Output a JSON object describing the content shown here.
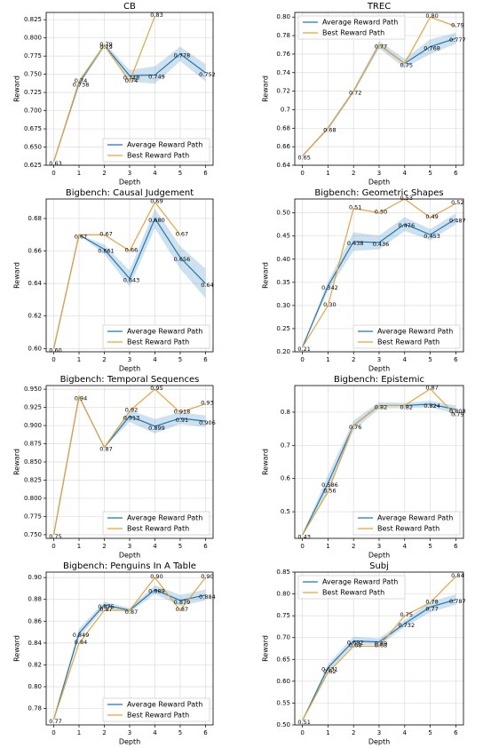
{
  "chart_data": [
    {
      "type": "line",
      "title": "CB",
      "x_label": "Depth",
      "y_label": "Reward",
      "x": [
        0,
        1,
        2,
        3,
        4,
        5,
        6
      ],
      "xlim": [
        -0.3,
        6.3
      ],
      "xticks": [
        0,
        1,
        2,
        3,
        4,
        5,
        6
      ],
      "ylim": [
        0.625,
        0.835
      ],
      "yticks": [
        0.625,
        {
          "value": 0.65,
          "label": "0.650"
        },
        0.675,
        {
          "value": 0.7,
          "label": "0.700"
        },
        0.725,
        {
          "value": 0.75,
          "label": "0.750"
        },
        0.775,
        {
          "value": 0.8,
          "label": "0.800"
        },
        0.825
      ],
      "grid": true,
      "legend": "lower right",
      "series": [
        {
          "name": "Average Reward Path",
          "color": "#1f77b4",
          "values": [
            0.63,
            0.738,
            0.79,
            0.748,
            0.749,
            0.778,
            0.752
          ],
          "spread": [
            0,
            0.004,
            0.003,
            0.008,
            0.012,
            0.01,
            0.012
          ]
        },
        {
          "name": "Best Reward Path",
          "color": "#e8a33a",
          "values": [
            0.63,
            0.74,
            0.79,
            0.74,
            0.83,
            null,
            null
          ],
          "value_labels": [
            null,
            "0.74",
            "0.79",
            "0.74",
            "0.83",
            null,
            null
          ]
        }
      ]
    },
    {
      "type": "line",
      "title": "TREC",
      "x_label": "Depth",
      "y_label": "Reward",
      "x": [
        0,
        1,
        2,
        3,
        4,
        5,
        6
      ],
      "xlim": [
        -0.3,
        6.3
      ],
      "xticks": [
        0,
        1,
        2,
        3,
        4,
        5,
        6
      ],
      "ylim": [
        0.64,
        0.805
      ],
      "yticks": [
        0.64,
        0.66,
        0.68,
        0.7,
        0.72,
        0.74,
        0.76,
        0.78,
        {
          "value": 0.8,
          "label": "0.80"
        }
      ],
      "grid": true,
      "legend": "upper left",
      "series": [
        {
          "name": "Average Reward Path",
          "color": "#1f77b4",
          "values": [
            0.65,
            0.68,
            0.72,
            0.77,
            0.75,
            0.768,
            0.777
          ],
          "spread": [
            0,
            0.002,
            0.002,
            0.004,
            0.005,
            0.008,
            0.006
          ]
        },
        {
          "name": "Best Reward Path",
          "color": "#e8a33a",
          "values": [
            0.65,
            0.68,
            0.72,
            0.77,
            0.75,
            0.8,
            0.79
          ],
          "value_labels": [
            null,
            null,
            null,
            null,
            null,
            "0.80",
            "0.79"
          ]
        }
      ]
    },
    {
      "type": "line",
      "title": "Bigbench: Causal Judgement",
      "x_label": "Depth",
      "y_label": "Reward",
      "x": [
        0,
        1,
        2,
        3,
        4,
        5,
        6
      ],
      "xlim": [
        -0.3,
        6.3
      ],
      "xticks": [
        0,
        1,
        2,
        3,
        4,
        5,
        6
      ],
      "ylim": [
        0.598,
        0.692
      ],
      "yticks": [
        {
          "value": 0.6,
          "label": "0.60"
        },
        0.62,
        0.64,
        0.66,
        0.68
      ],
      "grid": true,
      "legend": "lower right",
      "series": [
        {
          "name": "Average Reward Path",
          "color": "#1f77b4",
          "values": [
            0.6,
            0.67,
            0.661,
            0.643,
            0.68,
            0.656,
            0.64
          ],
          "value_labels": [
            "0.60",
            "0.67",
            "0.661",
            "0.643",
            "0.680",
            "0.656",
            "0.64"
          ],
          "spread": [
            0,
            0,
            0.003,
            0.005,
            0.006,
            0.007,
            0.009
          ]
        },
        {
          "name": "Best Reward Path",
          "color": "#e8a33a",
          "values": [
            0.6,
            0.67,
            0.67,
            0.66,
            0.69,
            0.67,
            null
          ],
          "value_labels": [
            null,
            null,
            "0.67",
            "0.66",
            "0.69",
            "0.67",
            null
          ]
        }
      ]
    },
    {
      "type": "line",
      "title": "Bigbench: Geometric Shapes",
      "x_label": "Depth",
      "y_label": "Reward",
      "x": [
        0,
        1,
        2,
        3,
        4,
        5,
        6
      ],
      "xlim": [
        -0.3,
        6.3
      ],
      "xticks": [
        0,
        1,
        2,
        3,
        4,
        5,
        6
      ],
      "ylim": [
        0.2,
        0.53
      ],
      "yticks": [
        {
          "value": 0.2,
          "label": "0.20"
        },
        0.25,
        {
          "value": 0.3,
          "label": "0.30"
        },
        0.35,
        {
          "value": 0.4,
          "label": "0.40"
        },
        0.45,
        {
          "value": 0.5,
          "label": "0.50"
        }
      ],
      "grid": true,
      "legend": "lower right",
      "series": [
        {
          "name": "Average Reward Path",
          "color": "#1f77b4",
          "values": [
            0.21,
            0.342,
            0.438,
            0.436,
            0.476,
            0.453,
            0.487
          ],
          "spread": [
            0,
            0.01,
            0.02,
            0.015,
            0.015,
            0.012,
            0.012
          ]
        },
        {
          "name": "Best Reward Path",
          "color": "#e8a33a",
          "values": [
            0.21,
            0.3,
            0.51,
            0.5,
            0.53,
            0.49,
            0.52
          ],
          "value_labels": [
            null,
            "0.30",
            "0.51",
            "0.50",
            "0.53",
            "0.49",
            "0.52"
          ]
        }
      ]
    },
    {
      "type": "line",
      "title": "Bigbench: Temporal Sequences",
      "x_label": "Depth",
      "y_label": "Reward",
      "x": [
        0,
        1,
        2,
        3,
        4,
        5,
        6
      ],
      "xlim": [
        -0.3,
        6.3
      ],
      "xticks": [
        0,
        1,
        2,
        3,
        4,
        5,
        6
      ],
      "ylim": [
        0.745,
        0.955
      ],
      "yticks": [
        {
          "value": 0.75,
          "label": "0.750"
        },
        0.775,
        {
          "value": 0.8,
          "label": "0.800"
        },
        0.825,
        {
          "value": 0.85,
          "label": "0.850"
        },
        0.875,
        {
          "value": 0.9,
          "label": "0.900"
        },
        0.925,
        {
          "value": 0.95,
          "label": "0.950"
        }
      ],
      "grid": true,
      "legend": "lower right",
      "series": [
        {
          "name": "Average Reward Path",
          "color": "#1f77b4",
          "values": [
            0.75,
            0.94,
            0.87,
            0.913,
            0.899,
            0.91,
            0.906
          ],
          "spread": [
            0,
            0,
            0,
            0.008,
            0.01,
            0.008,
            0.008
          ]
        },
        {
          "name": "Best Reward Path",
          "color": "#e8a33a",
          "values": [
            0.75,
            0.94,
            0.87,
            0.92,
            0.95,
            0.918,
            0.93
          ],
          "value_labels": [
            null,
            null,
            null,
            "0.92",
            "0.95",
            "0.918",
            "0.93"
          ]
        }
      ]
    },
    {
      "type": "line",
      "title": "Bigbench: Epistemic",
      "x_label": "Depth",
      "y_label": "Reward",
      "x": [
        0,
        1,
        2,
        3,
        4,
        5,
        6
      ],
      "xlim": [
        -0.3,
        6.3
      ],
      "xticks": [
        0,
        1,
        2,
        3,
        4,
        5,
        6
      ],
      "ylim": [
        0.42,
        0.88
      ],
      "yticks": [
        0.5,
        0.6,
        0.7,
        0.8
      ],
      "grid": true,
      "legend": "lower right",
      "series": [
        {
          "name": "Average Reward Path",
          "color": "#1f77b4",
          "values": [
            0.43,
            0.586,
            0.76,
            0.82,
            0.82,
            0.824,
            0.808
          ],
          "spread": [
            0,
            0.025,
            0.015,
            0.01,
            0.008,
            0.01,
            0.012
          ]
        },
        {
          "name": "Best Reward Path",
          "color": "#e8a33a",
          "values": [
            0.43,
            0.56,
            0.76,
            0.82,
            0.82,
            0.87,
            0.79
          ],
          "value_labels": [
            null,
            "0.56",
            null,
            null,
            null,
            "0.87",
            "0.79"
          ]
        }
      ]
    },
    {
      "type": "line",
      "title": "Bigbench: Penguins In A Table",
      "x_label": "Depth",
      "y_label": "Reward",
      "x": [
        0,
        1,
        2,
        3,
        4,
        5,
        6
      ],
      "xlim": [
        -0.3,
        6.3
      ],
      "xticks": [
        0,
        1,
        2,
        3,
        4,
        5,
        6
      ],
      "ylim": [
        0.765,
        0.905
      ],
      "yticks": [
        0.78,
        {
          "value": 0.8,
          "label": "0.80"
        },
        0.82,
        0.84,
        0.86,
        0.88,
        {
          "value": 0.9,
          "label": "0.90"
        }
      ],
      "grid": true,
      "legend": "lower right",
      "series": [
        {
          "name": "Average Reward Path",
          "color": "#1f77b4",
          "values": [
            0.77,
            0.849,
            0.875,
            0.87,
            0.889,
            0.879,
            0.884
          ],
          "spread": [
            0,
            0.004,
            0.003,
            0.002,
            0.004,
            0.005,
            0.005
          ]
        },
        {
          "name": "Best Reward Path",
          "color": "#e8a33a",
          "values": [
            0.77,
            0.84,
            0.87,
            0.87,
            0.9,
            0.87,
            0.9
          ],
          "value_labels": [
            null,
            "0.84",
            "0.87",
            null,
            "0.90",
            "0.87",
            "0.90"
          ]
        }
      ]
    },
    {
      "type": "line",
      "title": "Subj",
      "x_label": "Depth",
      "y_label": "Reward",
      "x": [
        0,
        1,
        2,
        3,
        4,
        5,
        6
      ],
      "xlim": [
        -0.3,
        6.3
      ],
      "xticks": [
        0,
        1,
        2,
        3,
        4,
        5,
        6
      ],
      "ylim": [
        0.5,
        0.85
      ],
      "yticks": [
        {
          "value": 0.5,
          "label": "0.50"
        },
        0.55,
        {
          "value": 0.6,
          "label": "0.60"
        },
        0.65,
        {
          "value": 0.7,
          "label": "0.70"
        },
        0.75,
        {
          "value": 0.8,
          "label": "0.80"
        },
        0.85
      ],
      "grid": true,
      "legend": "upper left",
      "series": [
        {
          "name": "Average Reward Path",
          "color": "#1f77b4",
          "values": [
            0.51,
            0.631,
            0.692,
            0.69,
            0.732,
            0.77,
            0.787
          ],
          "spread": [
            0,
            0.008,
            0.01,
            0.008,
            0.008,
            0.012,
            0.012
          ]
        },
        {
          "name": "Best Reward Path",
          "color": "#e8a33a",
          "values": [
            0.51,
            0.62,
            0.68,
            0.68,
            0.75,
            0.78,
            0.84
          ],
          "value_labels": [
            null,
            "0.62",
            "0.68",
            "0.68",
            "0.75",
            "0.78",
            "0.84"
          ]
        }
      ]
    }
  ]
}
